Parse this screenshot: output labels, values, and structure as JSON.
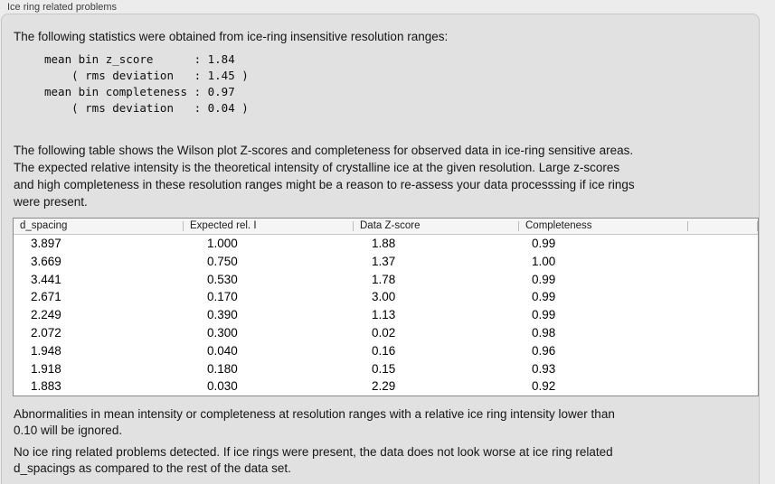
{
  "window": {
    "title": "Ice ring related problems"
  },
  "intro": {
    "text": "The following statistics were obtained from ice-ring insensitive resolution ranges:"
  },
  "stats_block": "mean bin z_score      : 1.84\n    ( rms deviation   : 1.45 )\nmean bin completeness : 0.97\n    ( rms deviation   : 0.04 )",
  "stats": {
    "mean_bin_z_score": "1.84",
    "z_score_rms_deviation": "1.45",
    "mean_bin_completeness": "0.97",
    "completeness_rms_deviation": "0.04"
  },
  "table_note": {
    "text": "The following table shows the Wilson plot Z-scores and completeness for observed data in ice-ring sensitive areas.\nThe expected relative intensity is the theoretical intensity of crystalline ice at the given resolution. Large z-scores\nand high completeness in these resolution ranges might be a reason to re-assess your data processsing if ice rings\nwere present."
  },
  "table": {
    "columns": [
      "d_spacing",
      "Expected rel. I",
      "Data Z-score",
      "Completeness"
    ],
    "rows": [
      [
        "3.897",
        "1.000",
        "1.88",
        "0.99"
      ],
      [
        "3.669",
        "0.750",
        "1.37",
        "1.00"
      ],
      [
        "3.441",
        "0.530",
        "1.78",
        "0.99"
      ],
      [
        "2.671",
        "0.170",
        "3.00",
        "0.99"
      ],
      [
        "2.249",
        "0.390",
        "1.13",
        "0.99"
      ],
      [
        "2.072",
        "0.300",
        "0.02",
        "0.98"
      ],
      [
        "1.948",
        "0.040",
        "0.16",
        "0.96"
      ],
      [
        "1.918",
        "0.180",
        "0.15",
        "0.93"
      ],
      [
        "1.883",
        "0.030",
        "2.29",
        "0.92"
      ]
    ]
  },
  "footer": {
    "ignore_note": "Abnormalities in mean intensity or completeness at resolution ranges with a relative ice ring intensity lower than\n0.10 will be ignored.",
    "conclusion": "No ice ring related problems detected. If ice rings were present, the data does not look worse at ice ring related\nd_spacings as compared to the rest of the data set."
  },
  "colors": {
    "window_background": "#ececec",
    "panel_background": "#e1e1e1",
    "table_background": "#ffffff",
    "header_background": "#f5f5f5",
    "text": "#131313"
  }
}
